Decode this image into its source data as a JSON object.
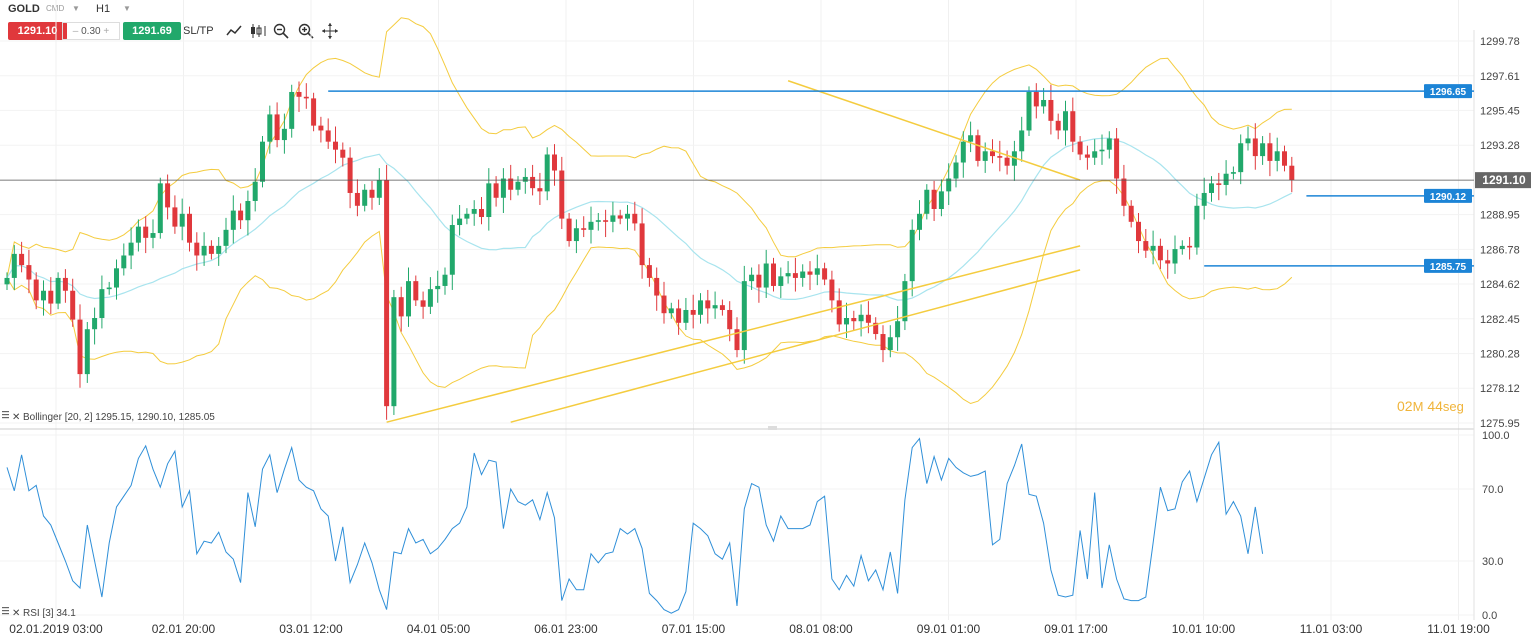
{
  "toolbar": {
    "symbol": "GOLD",
    "type_label": "CMD",
    "timeframe": "H1",
    "sell_price": "1291.10",
    "spread": "0.30",
    "buy_price": "1291.69",
    "sltp_label": "SL/TP",
    "icons": [
      "line-chart-icon",
      "candlestick-icon",
      "zoom-out-icon",
      "zoom-in-icon",
      "crosshair-icon"
    ]
  },
  "timer": {
    "minutes": "02",
    "m_label": "M",
    "seconds": "44",
    "s_label": "seg"
  },
  "colors": {
    "bull": "#21a86b",
    "bear": "#e0383c",
    "bollinger": "#f4cc3f",
    "middle": "#a8e4ee",
    "hline": "#1c84d6",
    "trend": "#f4cc3f",
    "rsi": "#2f8fd8",
    "current": "#555555"
  },
  "chart_data": [
    {
      "type": "candlestick",
      "symbol": "GOLD",
      "timeframe": "H1",
      "y_ticks": [
        "1299.78",
        "1297.61",
        "1295.45",
        "1293.28",
        "1291.10",
        "1288.95",
        "1286.78",
        "1284.62",
        "1282.45",
        "1280.28",
        "1278.12",
        "1275.95"
      ],
      "ylim": [
        1275.95,
        1299.78
      ],
      "x_ticks": [
        "02.01.2019 03:00",
        "02.01 20:00",
        "03.01 12:00",
        "04.01 05:00",
        "06.01 23:00",
        "07.01 15:00",
        "08.01 08:00",
        "09.01 01:00",
        "09.01 17:00",
        "10.01 10:00",
        "11.01 03:00",
        "11.01 19:00"
      ],
      "current_price": "1291.10",
      "horizontal_levels": [
        {
          "label": "1296.65",
          "value": 1296.65
        },
        {
          "label": "1290.12",
          "value": 1290.12
        },
        {
          "label": "1285.75",
          "value": 1285.75
        }
      ],
      "trend_lines": [
        {
          "from": [
            52,
            1276.0
          ],
          "to": [
            147,
            1287.0
          ]
        },
        {
          "from": [
            69,
            1276.0
          ],
          "to": [
            147,
            1285.5
          ]
        },
        {
          "from": [
            107,
            1297.3
          ],
          "to": [
            147,
            1291.1
          ]
        }
      ],
      "indicator_label": "Bollinger [20, 2] 1295.15, 1290.10, 1285.05",
      "closes": [
        1285.0,
        1286.5,
        1285.8,
        1284.9,
        1283.6,
        1284.2,
        1283.4,
        1285.0,
        1284.2,
        1282.4,
        1279.0,
        1281.8,
        1282.5,
        1284.3,
        1284.4,
        1285.6,
        1286.4,
        1287.2,
        1288.2,
        1287.5,
        1287.8,
        1290.9,
        1289.4,
        1288.2,
        1289.0,
        1287.2,
        1286.4,
        1287.0,
        1286.5,
        1287.0,
        1288.0,
        1289.2,
        1288.6,
        1289.8,
        1291.0,
        1293.5,
        1295.2,
        1293.6,
        1294.3,
        1296.6,
        1296.3,
        1296.2,
        1294.5,
        1294.2,
        1293.5,
        1293.0,
        1292.5,
        1290.3,
        1289.5,
        1290.5,
        1290.0,
        1291.1,
        1277.0,
        1283.8,
        1282.6,
        1284.8,
        1283.6,
        1283.2,
        1284.3,
        1284.5,
        1285.2,
        1288.3,
        1288.7,
        1289.0,
        1289.3,
        1288.8,
        1290.9,
        1290.0,
        1291.2,
        1290.5,
        1291.0,
        1291.3,
        1290.6,
        1290.4,
        1292.7,
        1291.7,
        1288.7,
        1287.3,
        1288.1,
        1288.0,
        1288.5,
        1288.6,
        1288.5,
        1288.9,
        1288.7,
        1289.0,
        1288.4,
        1285.8,
        1285.0,
        1283.9,
        1282.8,
        1283.1,
        1282.2,
        1283.0,
        1282.7,
        1283.6,
        1283.1,
        1283.3,
        1283.0,
        1281.8,
        1280.5,
        1284.8,
        1285.2,
        1284.4,
        1285.9,
        1284.5,
        1285.1,
        1285.3,
        1285.0,
        1285.4,
        1285.2,
        1285.6,
        1284.9,
        1283.6,
        1282.1,
        1282.5,
        1282.3,
        1282.7,
        1282.2,
        1281.5,
        1280.5,
        1281.3,
        1282.3,
        1284.8,
        1288.0,
        1289.0,
        1290.5,
        1289.3,
        1290.4,
        1291.2,
        1292.2,
        1293.5,
        1293.9,
        1292.3,
        1292.9,
        1292.6,
        1292.5,
        1292.0,
        1292.9,
        1294.2,
        1296.6,
        1295.7,
        1296.1,
        1294.8,
        1294.2,
        1295.4,
        1293.5,
        1292.7,
        1292.5,
        1292.9,
        1293.0,
        1293.7,
        1291.2,
        1289.5,
        1288.5,
        1287.3,
        1286.7,
        1287.0,
        1286.1,
        1285.9,
        1286.8,
        1287.0,
        1286.9,
        1289.5,
        1290.3,
        1290.9,
        1290.8,
        1291.5,
        1291.6,
        1293.4,
        1293.7,
        1292.6,
        1293.4,
        1292.3,
        1292.9,
        1292.0,
        1291.1
      ]
    },
    {
      "type": "line",
      "indicator_label": "RSI [3] 34.1",
      "y_ticks": [
        "100.0",
        "70.0",
        "30.0",
        "0.0"
      ],
      "ylim": [
        0,
        100
      ],
      "values": [
        82,
        69,
        89,
        69,
        72,
        55,
        50,
        40,
        30,
        19,
        15,
        50,
        30,
        10,
        40,
        60,
        66,
        72,
        87,
        94,
        81,
        71,
        84,
        91,
        60,
        69,
        34,
        41,
        40,
        46,
        35,
        31,
        18,
        68,
        49,
        81,
        89,
        68,
        81,
        93,
        75,
        71,
        69,
        59,
        55,
        30,
        49,
        18,
        28,
        40,
        29,
        14,
        3,
        35,
        34,
        48,
        40,
        42,
        34,
        37,
        42,
        48,
        51,
        60,
        90,
        78,
        86,
        85,
        48,
        70,
        63,
        61,
        64,
        53,
        68,
        54,
        8,
        20,
        14,
        14,
        34,
        29,
        34,
        35,
        48,
        45,
        48,
        37,
        12,
        8,
        3,
        1,
        3,
        13,
        51,
        48,
        44,
        34,
        31,
        40,
        5,
        59,
        73,
        71,
        50,
        41,
        55,
        48,
        48,
        48,
        50,
        63,
        66,
        20,
        14,
        22,
        16,
        33,
        19,
        25,
        14,
        35,
        12,
        64,
        93,
        98,
        73,
        88,
        75,
        87,
        82,
        79,
        77,
        78,
        80,
        39,
        42,
        73,
        83,
        95,
        67,
        66,
        51,
        25,
        11,
        10,
        11,
        47,
        20,
        68,
        15,
        39,
        20,
        9,
        8,
        8,
        10,
        40,
        71,
        58,
        59,
        74,
        80,
        63,
        76,
        89,
        96,
        56,
        63,
        55,
        34,
        60,
        34
      ]
    }
  ]
}
